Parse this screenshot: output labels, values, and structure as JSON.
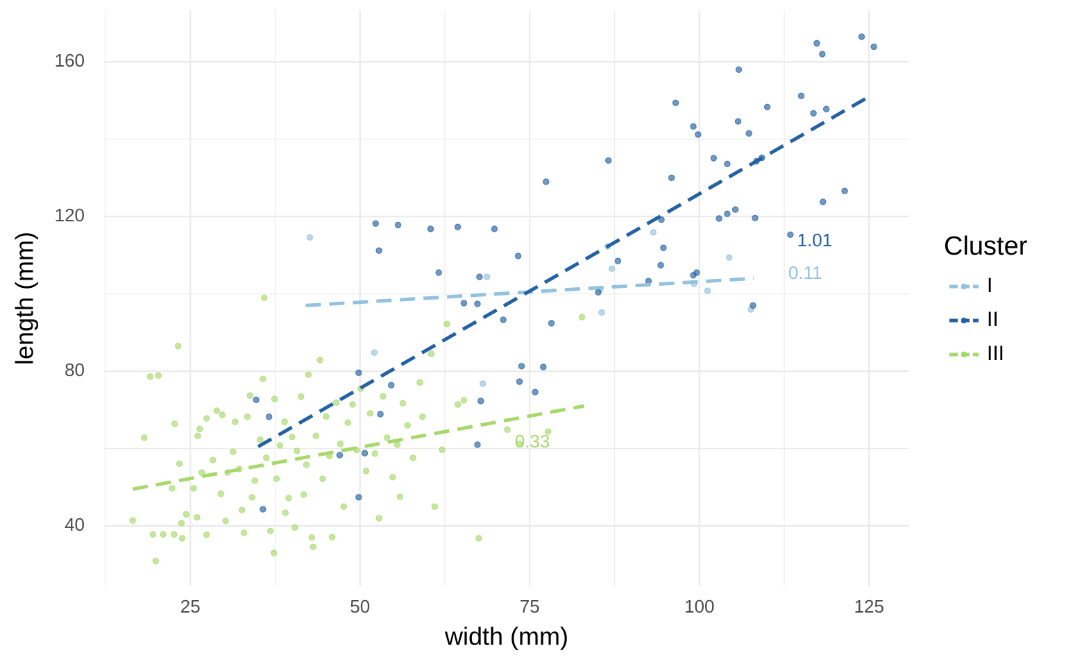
{
  "chart_data": {
    "type": "scatter",
    "x_label": "width (mm)",
    "y_label": "length (mm)",
    "xlim": [
      12.3,
      130.9
    ],
    "ylim": [
      24.4,
      173.3
    ],
    "xticks": [
      25,
      50,
      75,
      100,
      125
    ],
    "yticks": [
      40,
      80,
      120,
      160
    ],
    "minor_xticks": [
      12.5,
      37.5,
      62.5,
      87.5,
      112.5
    ],
    "minor_yticks": [
      60,
      100,
      140
    ],
    "grid": true,
    "legend_title": "Cluster",
    "legend_position": "right",
    "series": [
      {
        "name": "I",
        "color": "#92c2dd",
        "x": [
          42.6,
          93.2,
          86.5,
          104.4,
          87.1,
          68.7,
          99.2,
          101.2,
          85.4,
          85.6,
          107.6,
          52.1,
          68.1
        ],
        "y": [
          114.6,
          115.9,
          112.3,
          109.4,
          106.5,
          104.4,
          102.6,
          100.8,
          101.2,
          95.2,
          96,
          84.8,
          76.8
        ],
        "trend": {
          "x": [
            42,
            108
          ],
          "y": [
            97,
            104
          ]
        },
        "annotation": {
          "text": "0.11",
          "x": 113.1,
          "y": 105.1
        }
      },
      {
        "name": "II",
        "color": "#2361a3",
        "x": [
          123.9,
          125.7,
          117.3,
          118.1,
          105.8,
          96.5,
          115,
          110,
          118.7,
          116.8,
          105.7,
          99.1,
          99.8,
          107.3,
          86.6,
          102.1,
          104.1,
          109.2,
          108.4,
          77.4,
          95.9,
          121.4,
          118.2,
          105.3,
          104.1,
          102.9,
          108.2,
          94.4,
          52.3,
          55.6,
          60.4,
          64.4,
          69.8,
          52.8,
          94.7,
          113.4,
          73.3,
          88,
          94.3,
          61.6,
          99.6,
          99.1,
          67.6,
          92.5,
          85.1,
          65.3,
          67.3,
          107.9,
          71.1,
          78.2,
          73.8,
          77,
          49.8,
          73.5,
          54.6,
          75.8,
          34.7,
          67.8,
          53,
          36.6,
          67.3,
          50.7,
          47,
          35.7,
          49.8
        ],
        "y": [
          166.5,
          163.9,
          164.8,
          162,
          158,
          149.4,
          151.2,
          148.3,
          147.8,
          146.7,
          144.6,
          143.3,
          141.2,
          141.5,
          134.5,
          135.1,
          133.6,
          135.2,
          134.3,
          129,
          130,
          126.6,
          123.8,
          121.8,
          120.7,
          119.5,
          119.6,
          119.2,
          118.2,
          117.8,
          116.8,
          117.3,
          116.8,
          111.2,
          111.9,
          115.3,
          109.8,
          108.5,
          107.4,
          105.5,
          105.5,
          104.8,
          104.4,
          103.3,
          100.4,
          97.6,
          97.4,
          97,
          93.3,
          92.4,
          81.3,
          81.1,
          79.6,
          77.3,
          76.4,
          74.6,
          72.6,
          72.3,
          68.9,
          68.2,
          61,
          58.8,
          58.3,
          44.3,
          47.4
        ],
        "trend": {
          "x": [
            35,
            125
          ],
          "y": [
            60.5,
            151
          ]
        },
        "annotation": {
          "text": "1.01",
          "x": 114.4,
          "y": 113.5
        }
      },
      {
        "name": "III",
        "color": "#a6d96a",
        "x": [
          16.5,
          18.2,
          19.1,
          20.3,
          19.5,
          19.9,
          21,
          22.3,
          22.6,
          23.2,
          22.7,
          23.4,
          23.7,
          24.4,
          23.8,
          25.5,
          26.1,
          26.4,
          26,
          26.7,
          27.4,
          27.4,
          28.3,
          28.9,
          29.7,
          29.5,
          30.2,
          30.5,
          31.3,
          31.6,
          32.2,
          32.6,
          32.9,
          33.4,
          33.8,
          34.1,
          34.5,
          35.3,
          35.9,
          35.7,
          36.2,
          36.8,
          37.3,
          37.4,
          37.7,
          38.2,
          38.9,
          39,
          39.5,
          40,
          40.4,
          40.7,
          41.3,
          41.7,
          42.1,
          42.4,
          42.9,
          43.1,
          43.5,
          44.1,
          44.5,
          45,
          45.5,
          45.9,
          46.5,
          47.1,
          47.6,
          48.2,
          48.9,
          49.5,
          50.1,
          50.9,
          51.5,
          52.2,
          52.8,
          53.4,
          54,
          54.8,
          55.5,
          56.3,
          57,
          57.8,
          58.8,
          59.2,
          60.5,
          61,
          62.1,
          62.8,
          64.4,
          65.3,
          67.5,
          71.7,
          73.5,
          77.7,
          82.7,
          55.9
        ],
        "y": [
          41.4,
          62.8,
          78.6,
          78.9,
          37.8,
          30.9,
          37.8,
          49.7,
          37.8,
          86.5,
          66.4,
          56.1,
          40.7,
          43,
          36.8,
          49.7,
          63.3,
          65.1,
          42.2,
          53.8,
          67.8,
          37.7,
          57,
          69.8,
          68.7,
          48.3,
          41.3,
          53.8,
          59.2,
          66.9,
          54.7,
          44.1,
          38.2,
          68.2,
          73.7,
          47.4,
          51.7,
          62.3,
          99,
          78,
          57.6,
          38.7,
          33,
          72.8,
          52.2,
          60.8,
          66.9,
          43.4,
          47.2,
          63,
          39.6,
          59.4,
          73.4,
          48.1,
          55.8,
          79.1,
          37,
          34.6,
          63.3,
          82.9,
          52.2,
          68.3,
          58.1,
          37.1,
          71.9,
          61.2,
          45,
          66.7,
          71.4,
          59.6,
          75.5,
          54.2,
          69.1,
          58.7,
          42,
          73.5,
          62.8,
          52.6,
          61,
          71.7,
          66,
          57.6,
          77.1,
          68.2,
          84.5,
          45,
          59.7,
          92.2,
          71.4,
          72.5,
          36.8,
          64.9,
          61.2,
          64.4,
          94,
          47.5
        ],
        "trend": {
          "x": [
            16.5,
            83
          ],
          "y": [
            49.5,
            71
          ]
        },
        "annotation": {
          "text": "0.33",
          "x": 72.8,
          "y": 61.5
        }
      }
    ]
  }
}
